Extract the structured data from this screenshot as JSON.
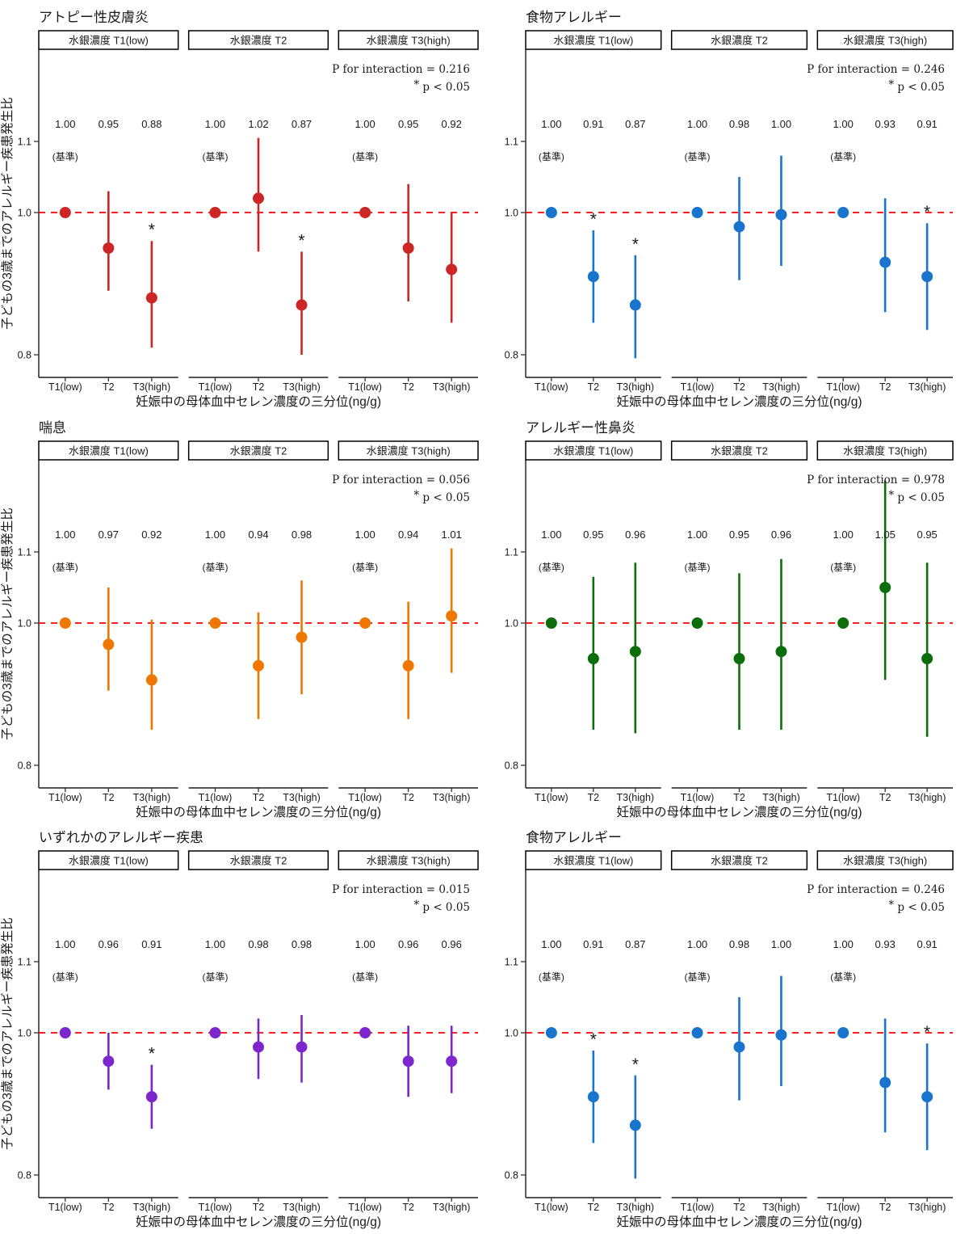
{
  "shared": {
    "facet_labels": [
      "水銀濃度 T1(low)",
      "水銀濃度 T2",
      "水銀濃度 T3(high)"
    ],
    "x_categories": [
      "T1(low)",
      "T2",
      "T3(high)"
    ],
    "xlabel": "妊娠中の母体血中セレン濃度の三分位(ng/g)",
    "ylabel": "子どもの3歳までのアレルギー疾患発生比",
    "y_tick_labels": [
      "1.1",
      "1.0",
      "0.8"
    ],
    "y_tick_values": [
      1.1,
      1.0,
      0.8
    ],
    "ylim": [
      0.768,
      1.228
    ],
    "ref_value": 1.0,
    "ref_color": "#ff0000",
    "sig_note": "* p < 0.05",
    "baseline_label": "(基準)",
    "axis_color": "#1a1a1a",
    "tick_text_color": "#333333"
  },
  "chart_data": [
    {
      "type": "pointrange",
      "title": "アトピー性皮膚炎",
      "color": "#CD2626",
      "p_for_interaction": "P for interaction = 0.216",
      "facets": [
        {
          "label": "水銀濃度 T1(low)",
          "points": [
            {
              "category": "T1(low)",
              "label": "1.00",
              "baseline": true,
              "est": 1.0
            },
            {
              "category": "T2",
              "label": "0.95",
              "est": 0.95,
              "lo": 0.89,
              "hi": 1.03
            },
            {
              "category": "T3(high)",
              "label": "0.88",
              "est": 0.88,
              "lo": 0.81,
              "hi": 0.96,
              "sig": true
            }
          ]
        },
        {
          "label": "水銀濃度 T2",
          "points": [
            {
              "category": "T1(low)",
              "label": "1.00",
              "baseline": true,
              "est": 1.0
            },
            {
              "category": "T2",
              "label": "1.02",
              "est": 1.02,
              "lo": 0.945,
              "hi": 1.105
            },
            {
              "category": "T3(high)",
              "label": "0.87",
              "est": 0.87,
              "lo": 0.8,
              "hi": 0.945,
              "sig": true
            }
          ]
        },
        {
          "label": "水銀濃度 T3(high)",
          "points": [
            {
              "category": "T1(low)",
              "label": "1.00",
              "baseline": true,
              "est": 1.0
            },
            {
              "category": "T2",
              "label": "0.95",
              "est": 0.95,
              "lo": 0.875,
              "hi": 1.04
            },
            {
              "category": "T3(high)",
              "label": "0.92",
              "est": 0.92,
              "lo": 0.845,
              "hi": 1.0
            }
          ]
        }
      ]
    },
    {
      "type": "pointrange",
      "title": "食物アレルギー",
      "color": "#1874CD",
      "p_for_interaction": "P for interaction = 0.246",
      "facets": [
        {
          "label": "水銀濃度 T1(low)",
          "points": [
            {
              "category": "T1(low)",
              "label": "1.00",
              "baseline": true,
              "est": 1.0
            },
            {
              "category": "T2",
              "label": "0.91",
              "est": 0.91,
              "lo": 0.845,
              "hi": 0.975,
              "sig": true
            },
            {
              "category": "T3(high)",
              "label": "0.87",
              "est": 0.87,
              "lo": 0.795,
              "hi": 0.94,
              "sig": true
            }
          ]
        },
        {
          "label": "水銀濃度 T2",
          "points": [
            {
              "category": "T1(low)",
              "label": "1.00",
              "baseline": true,
              "est": 1.0
            },
            {
              "category": "T2",
              "label": "0.98",
              "est": 0.98,
              "lo": 0.905,
              "hi": 1.05
            },
            {
              "category": "T3(high)",
              "label": "1.00",
              "est": 0.997,
              "lo": 0.925,
              "hi": 1.08
            }
          ]
        },
        {
          "label": "水銀濃度 T3(high)",
          "points": [
            {
              "category": "T1(low)",
              "label": "1.00",
              "baseline": true,
              "est": 1.0
            },
            {
              "category": "T2",
              "label": "0.93",
              "est": 0.93,
              "lo": 0.86,
              "hi": 1.02
            },
            {
              "category": "T3(high)",
              "label": "0.91",
              "est": 0.91,
              "lo": 0.835,
              "hi": 0.985,
              "sig": true
            }
          ]
        }
      ]
    },
    {
      "type": "pointrange",
      "title": "喘息",
      "color": "#EE7700",
      "p_for_interaction": "P for interaction = 0.056",
      "facets": [
        {
          "label": "水銀濃度 T1(low)",
          "points": [
            {
              "category": "T1(low)",
              "label": "1.00",
              "baseline": true,
              "est": 1.0
            },
            {
              "category": "T2",
              "label": "0.97",
              "est": 0.97,
              "lo": 0.905,
              "hi": 1.05
            },
            {
              "category": "T3(high)",
              "label": "0.92",
              "est": 0.92,
              "lo": 0.85,
              "hi": 1.005
            }
          ]
        },
        {
          "label": "水銀濃度 T2",
          "points": [
            {
              "category": "T1(low)",
              "label": "1.00",
              "baseline": true,
              "est": 1.0
            },
            {
              "category": "T2",
              "label": "0.94",
              "est": 0.94,
              "lo": 0.865,
              "hi": 1.015
            },
            {
              "category": "T3(high)",
              "label": "0.98",
              "est": 0.98,
              "lo": 0.9,
              "hi": 1.06
            }
          ]
        },
        {
          "label": "水銀濃度 T3(high)",
          "points": [
            {
              "category": "T1(low)",
              "label": "1.00",
              "baseline": true,
              "est": 1.0
            },
            {
              "category": "T2",
              "label": "0.94",
              "est": 0.94,
              "lo": 0.865,
              "hi": 1.03
            },
            {
              "category": "T3(high)",
              "label": "1.01",
              "est": 1.01,
              "lo": 0.93,
              "hi": 1.105
            }
          ]
        }
      ]
    },
    {
      "type": "pointrange",
      "title": "アレルギー性鼻炎",
      "color": "#0B6E0B",
      "p_for_interaction": "P for interaction = 0.978",
      "facets": [
        {
          "label": "水銀濃度 T1(low)",
          "points": [
            {
              "category": "T1(low)",
              "label": "1.00",
              "baseline": true,
              "est": 1.0
            },
            {
              "category": "T2",
              "label": "0.95",
              "est": 0.95,
              "lo": 0.85,
              "hi": 1.065
            },
            {
              "category": "T3(high)",
              "label": "0.96",
              "est": 0.96,
              "lo": 0.845,
              "hi": 1.085
            }
          ]
        },
        {
          "label": "水銀濃度 T2",
          "points": [
            {
              "category": "T1(low)",
              "label": "1.00",
              "baseline": true,
              "est": 1.0
            },
            {
              "category": "T2",
              "label": "0.95",
              "est": 0.95,
              "lo": 0.85,
              "hi": 1.07
            },
            {
              "category": "T3(high)",
              "label": "0.96",
              "est": 0.96,
              "lo": 0.85,
              "hi": 1.09
            }
          ]
        },
        {
          "label": "水銀濃度 T3(high)",
          "points": [
            {
              "category": "T1(low)",
              "label": "1.00",
              "baseline": true,
              "est": 1.0
            },
            {
              "category": "T2",
              "label": "1.05",
              "est": 1.05,
              "lo": 0.92,
              "hi": 1.2
            },
            {
              "category": "T3(high)",
              "label": "0.95",
              "est": 0.95,
              "lo": 0.84,
              "hi": 1.085
            }
          ]
        }
      ]
    },
    {
      "type": "pointrange",
      "title": "いずれかのアレルギー疾患",
      "color": "#7D26CD",
      "p_for_interaction": "P for interaction = 0.015",
      "facets": [
        {
          "label": "水銀濃度 T1(low)",
          "points": [
            {
              "category": "T1(low)",
              "label": "1.00",
              "baseline": true,
              "est": 1.0
            },
            {
              "category": "T2",
              "label": "0.96",
              "est": 0.96,
              "lo": 0.92,
              "hi": 1.0
            },
            {
              "category": "T3(high)",
              "label": "0.91",
              "est": 0.91,
              "lo": 0.865,
              "hi": 0.955,
              "sig": true
            }
          ]
        },
        {
          "label": "水銀濃度 T2",
          "points": [
            {
              "category": "T1(low)",
              "label": "1.00",
              "baseline": true,
              "est": 1.0
            },
            {
              "category": "T2",
              "label": "0.98",
              "est": 0.98,
              "lo": 0.935,
              "hi": 1.02
            },
            {
              "category": "T3(high)",
              "label": "0.98",
              "est": 0.98,
              "lo": 0.93,
              "hi": 1.025
            }
          ]
        },
        {
          "label": "水銀濃度 T3(high)",
          "points": [
            {
              "category": "T1(low)",
              "label": "1.00",
              "baseline": true,
              "est": 1.0
            },
            {
              "category": "T2",
              "label": "0.96",
              "est": 0.96,
              "lo": 0.91,
              "hi": 1.01
            },
            {
              "category": "T3(high)",
              "label": "0.96",
              "est": 0.96,
              "lo": 0.915,
              "hi": 1.01
            }
          ]
        }
      ]
    },
    {
      "type": "pointrange",
      "title": "食物アレルギー",
      "color": "#1874CD",
      "p_for_interaction": "P for interaction = 0.246",
      "facets": [
        {
          "label": "水銀濃度 T1(low)",
          "points": [
            {
              "category": "T1(low)",
              "label": "1.00",
              "baseline": true,
              "est": 1.0
            },
            {
              "category": "T2",
              "label": "0.91",
              "est": 0.91,
              "lo": 0.845,
              "hi": 0.975,
              "sig": true
            },
            {
              "category": "T3(high)",
              "label": "0.87",
              "est": 0.87,
              "lo": 0.795,
              "hi": 0.94,
              "sig": true
            }
          ]
        },
        {
          "label": "水銀濃度 T2",
          "points": [
            {
              "category": "T1(low)",
              "label": "1.00",
              "baseline": true,
              "est": 1.0
            },
            {
              "category": "T2",
              "label": "0.98",
              "est": 0.98,
              "lo": 0.905,
              "hi": 1.05
            },
            {
              "category": "T3(high)",
              "label": "1.00",
              "est": 0.997,
              "lo": 0.925,
              "hi": 1.08
            }
          ]
        },
        {
          "label": "水銀濃度 T3(high)",
          "points": [
            {
              "category": "T1(low)",
              "label": "1.00",
              "baseline": true,
              "est": 1.0
            },
            {
              "category": "T2",
              "label": "0.93",
              "est": 0.93,
              "lo": 0.86,
              "hi": 1.02
            },
            {
              "category": "T3(high)",
              "label": "0.91",
              "est": 0.91,
              "lo": 0.835,
              "hi": 0.985,
              "sig": true
            }
          ]
        }
      ]
    }
  ]
}
